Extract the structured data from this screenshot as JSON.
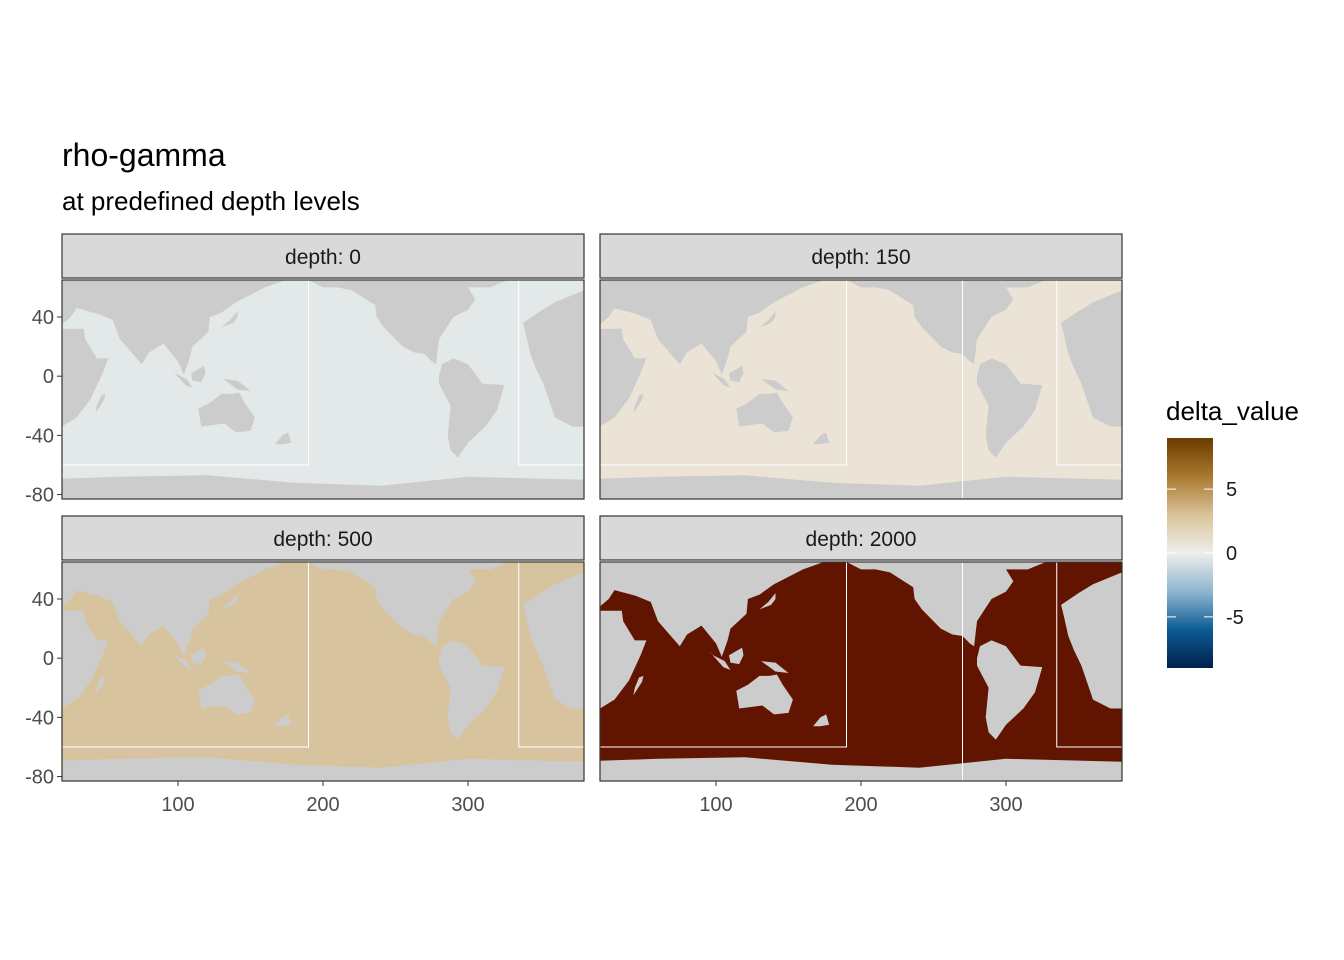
{
  "chart_data": {
    "type": "heatmap",
    "title": "rho-gamma",
    "subtitle": "at predefined depth levels",
    "xlabel": "",
    "ylabel": "",
    "xlim": [
      20,
      380
    ],
    "ylim": [
      -83,
      65
    ],
    "x_ticks": [
      100,
      200,
      300
    ],
    "y_ticks": [
      40,
      0,
      -40,
      -80
    ],
    "grid": false,
    "land_color": "#cccccc",
    "ice_color": "#ffffff",
    "region_boundary_color": "#ffffff",
    "panels": [
      {
        "strip": "depth: 0",
        "depth": 0,
        "value": 0.3,
        "fill": "#e3e8e8"
      },
      {
        "strip": "depth: 150",
        "depth": 150,
        "value": 1.0,
        "fill": "#ebe4d6"
      },
      {
        "strip": "depth: 500",
        "depth": 500,
        "value": 3.5,
        "fill": "#d7c49f"
      },
      {
        "strip": "depth: 2000",
        "depth": 2000,
        "value": 9,
        "fill": "#611500"
      }
    ],
    "legend": {
      "title": "delta_value",
      "position": "right",
      "breaks": [
        5,
        0,
        -5
      ],
      "limits": [
        -9,
        9
      ],
      "colors": [
        "#00204d",
        "#0d5c94",
        "#8fb6d1",
        "#eeeeea",
        "#d9c399",
        "#a9782e",
        "#6b3b00"
      ]
    }
  }
}
